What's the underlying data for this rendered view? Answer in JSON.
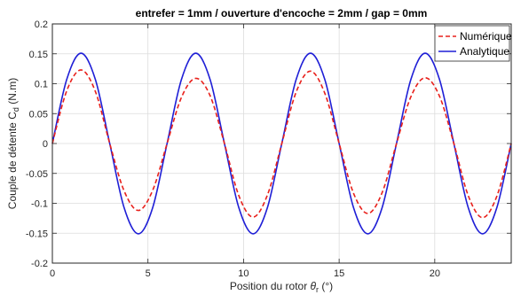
{
  "chart_data": {
    "type": "line",
    "title": "entrefer = 1mm / ouverture d'encoche = 2mm / gap = 0mm",
    "xlabel": "Position du rotor θr (°)",
    "xlabel_parts": {
      "prefix": "Position du rotor ",
      "symbol": "θ",
      "subscript": "r",
      "suffix": " (°)"
    },
    "ylabel": "Couple de détente Cd (N.m)",
    "ylabel_parts": {
      "prefix": "Couple de détente C",
      "subscript": "d",
      "suffix": " (N.m)"
    },
    "xlim": [
      0,
      24
    ],
    "ylim": [
      -0.2,
      0.2
    ],
    "xticks": [
      0,
      5,
      10,
      15,
      20
    ],
    "xtick_labels": [
      "0",
      "5",
      "10",
      "15",
      "20"
    ],
    "yticks": [
      -0.2,
      -0.15,
      -0.1,
      -0.05,
      0,
      0.05,
      0.1,
      0.15,
      0.2
    ],
    "ytick_labels": [
      "-0.2",
      "-0.15",
      "-0.1",
      "-0.05",
      "0",
      "0.05",
      "0.1",
      "0.15",
      "0.2"
    ],
    "grid": true,
    "legend_position": "top-right",
    "series": [
      {
        "name": "Numérique",
        "color": "#e8211c",
        "style": "dashed",
        "x": [
          0,
          0.75,
          1.5,
          2.25,
          3,
          3.75,
          4.5,
          5.25,
          6,
          6.75,
          7.5,
          8.25,
          9,
          9.75,
          10.5,
          11.25,
          12,
          12.75,
          13.5,
          14.25,
          15,
          15.75,
          16.5,
          17.25,
          18,
          18.75,
          19.5,
          20.25,
          21,
          21.75,
          22.5,
          23.25,
          24
        ],
        "values": [
          0,
          0.088,
          0.123,
          0.087,
          0,
          -0.079,
          -0.112,
          -0.078,
          0,
          0.077,
          0.109,
          0.08,
          0,
          -0.087,
          -0.123,
          -0.086,
          0,
          0.086,
          0.121,
          0.084,
          0,
          -0.083,
          -0.117,
          -0.082,
          0,
          0.078,
          0.11,
          0.079,
          0,
          -0.087,
          -0.124,
          -0.088,
          0
        ]
      },
      {
        "name": "Analytique",
        "color": "#1f1fd6",
        "style": "solid",
        "x": [
          0,
          0.75,
          1.5,
          2.25,
          3,
          3.75,
          4.5,
          5.25,
          6,
          6.75,
          7.5,
          8.25,
          9,
          9.75,
          10.5,
          11.25,
          12,
          12.75,
          13.5,
          14.25,
          15,
          15.75,
          16.5,
          17.25,
          18,
          18.75,
          19.5,
          20.25,
          21,
          21.75,
          22.5,
          23.25,
          24
        ],
        "values": [
          0,
          0.107,
          0.151,
          0.107,
          0,
          -0.107,
          -0.151,
          -0.107,
          0,
          0.107,
          0.151,
          0.107,
          0,
          -0.107,
          -0.151,
          -0.107,
          0,
          0.107,
          0.151,
          0.107,
          0,
          -0.107,
          -0.151,
          -0.107,
          0,
          0.107,
          0.151,
          0.107,
          0,
          -0.107,
          -0.151,
          -0.107,
          0
        ]
      }
    ]
  }
}
